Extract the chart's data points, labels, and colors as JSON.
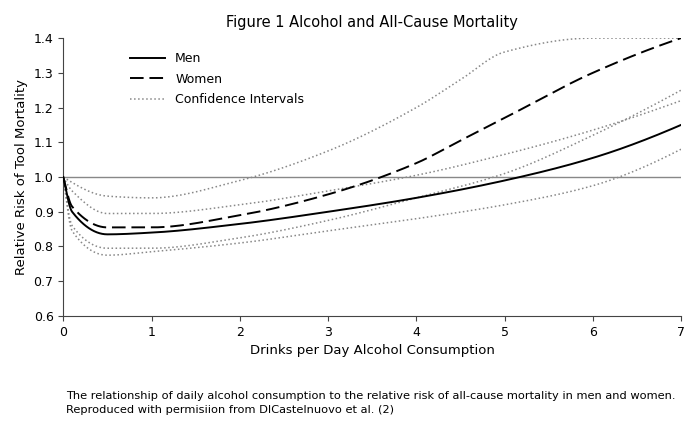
{
  "title": "Figure 1 Alcohol and All-Cause Mortality",
  "xlabel": "Drinks per Day Alcohol Consumption",
  "ylabel": "Relative Risk of Tool Mortality",
  "xlim": [
    0,
    7
  ],
  "ylim": [
    0.6,
    1.4
  ],
  "yticks": [
    0.6,
    0.7,
    0.8,
    0.9,
    1.0,
    1.1,
    1.2,
    1.3,
    1.4
  ],
  "xticks": [
    0,
    1,
    2,
    3,
    4,
    5,
    6,
    7
  ],
  "caption_line1": "The relationship of daily alcohol consumption to the relative risk of all-cause mortality in men and women.",
  "caption_line2": "Reproduced with permisiion from DICastelnuovo et al. (2)",
  "line_color_men": "#000000",
  "line_color_women": "#000000",
  "ci_color": "#888888",
  "hline_color": "#888888",
  "background_color": "#ffffff",
  "men_keypoints_x": [
    0.0,
    0.1,
    0.5,
    1.0,
    2.0,
    3.0,
    4.0,
    5.0,
    6.0,
    7.0
  ],
  "men_keypoints_y": [
    1.0,
    0.9,
    0.835,
    0.84,
    0.865,
    0.9,
    0.94,
    0.99,
    1.055,
    1.15
  ],
  "women_keypoints_x": [
    0.0,
    0.1,
    0.5,
    1.0,
    2.0,
    3.0,
    4.0,
    4.5,
    5.0,
    6.0,
    7.0
  ],
  "women_keypoints_y": [
    1.0,
    0.915,
    0.855,
    0.855,
    0.89,
    0.95,
    1.04,
    1.105,
    1.17,
    1.3,
    1.4
  ],
  "men_upper_x": [
    0.0,
    0.1,
    0.5,
    1.0,
    2.0,
    3.0,
    4.0,
    5.0,
    6.0,
    7.0
  ],
  "men_upper_y": [
    1.0,
    0.96,
    0.895,
    0.895,
    0.92,
    0.96,
    1.005,
    1.065,
    1.135,
    1.22
  ],
  "men_lower_x": [
    0.0,
    0.1,
    0.5,
    1.0,
    2.0,
    3.0,
    4.0,
    5.0,
    6.0,
    7.0
  ],
  "men_lower_y": [
    1.0,
    0.845,
    0.775,
    0.785,
    0.81,
    0.845,
    0.88,
    0.92,
    0.975,
    1.08
  ],
  "women_upper_x": [
    0.0,
    0.5,
    1.0,
    2.0,
    3.0,
    4.0,
    4.5,
    5.0,
    6.0,
    7.0
  ],
  "women_upper_y": [
    1.0,
    0.945,
    0.94,
    0.99,
    1.075,
    1.2,
    1.28,
    1.36,
    1.4,
    1.4
  ],
  "women_lower_x": [
    0.0,
    0.1,
    0.5,
    1.0,
    2.0,
    3.0,
    4.0,
    5.0,
    6.0,
    7.0
  ],
  "women_lower_y": [
    1.0,
    0.86,
    0.795,
    0.795,
    0.825,
    0.875,
    0.94,
    1.01,
    1.12,
    1.25
  ]
}
